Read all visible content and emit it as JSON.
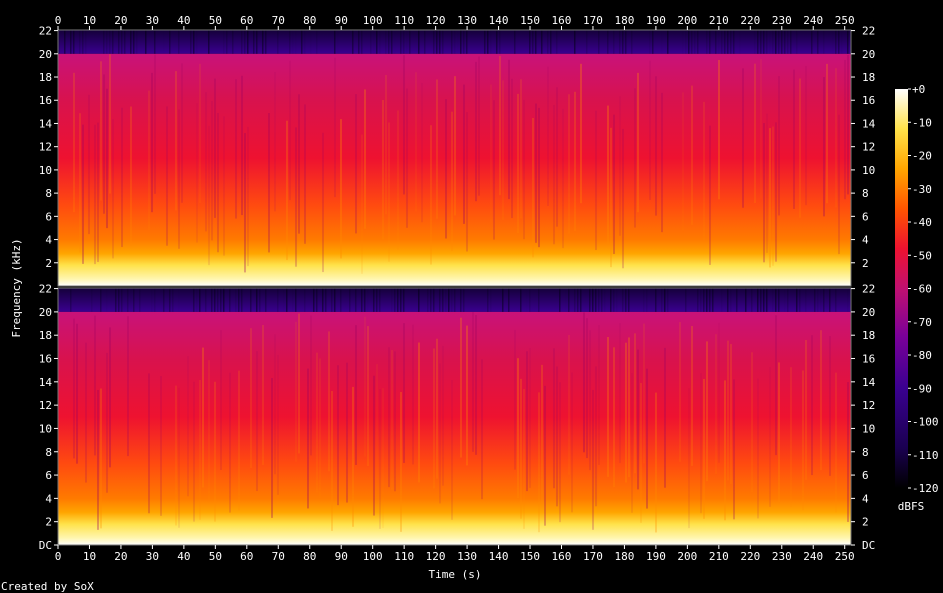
{
  "chart_data": {
    "type": "heatmap",
    "xlabel": "Time (s)",
    "ylabel": "Frequency (kHz)",
    "credit": "Created by SoX",
    "x_ticks": [
      0,
      10,
      20,
      30,
      40,
      50,
      60,
      70,
      80,
      90,
      100,
      110,
      120,
      130,
      140,
      150,
      160,
      170,
      180,
      190,
      200,
      210,
      220,
      230,
      240,
      250
    ],
    "xlim": [
      0,
      252
    ],
    "ylim": [
      0,
      22.05
    ],
    "y_tick_labels": [
      "DC",
      "2",
      "4",
      "6",
      "8",
      "10",
      "12",
      "14",
      "16",
      "18",
      "20",
      "22"
    ],
    "y_tick_values": [
      0,
      2,
      4,
      6,
      8,
      10,
      12,
      14,
      16,
      18,
      20,
      22
    ],
    "channels": 2,
    "lowpass_cutoff_khz": 20,
    "colorbar": {
      "label": "dBFS",
      "min": -120,
      "max": 0,
      "tick_labels": [
        "+0",
        "-10",
        "-20",
        "-30",
        "-40",
        "-50",
        "-60",
        "-70",
        "-80",
        "-90",
        "-100",
        "-110",
        "-120"
      ],
      "tick_values": [
        0,
        -10,
        -20,
        -30,
        -40,
        -50,
        -60,
        -70,
        -80,
        -90,
        -100,
        -110,
        -120
      ]
    },
    "colors": {
      "c0": "#000000",
      "c1": "#1a0050",
      "c2": "#3a0090",
      "c3": "#7a0099",
      "c4": "#c01070",
      "c5": "#ee1230",
      "c6": "#ff5500",
      "c7": "#ffa500",
      "c8": "#ffe24a",
      "c9": "#ffffff"
    }
  }
}
